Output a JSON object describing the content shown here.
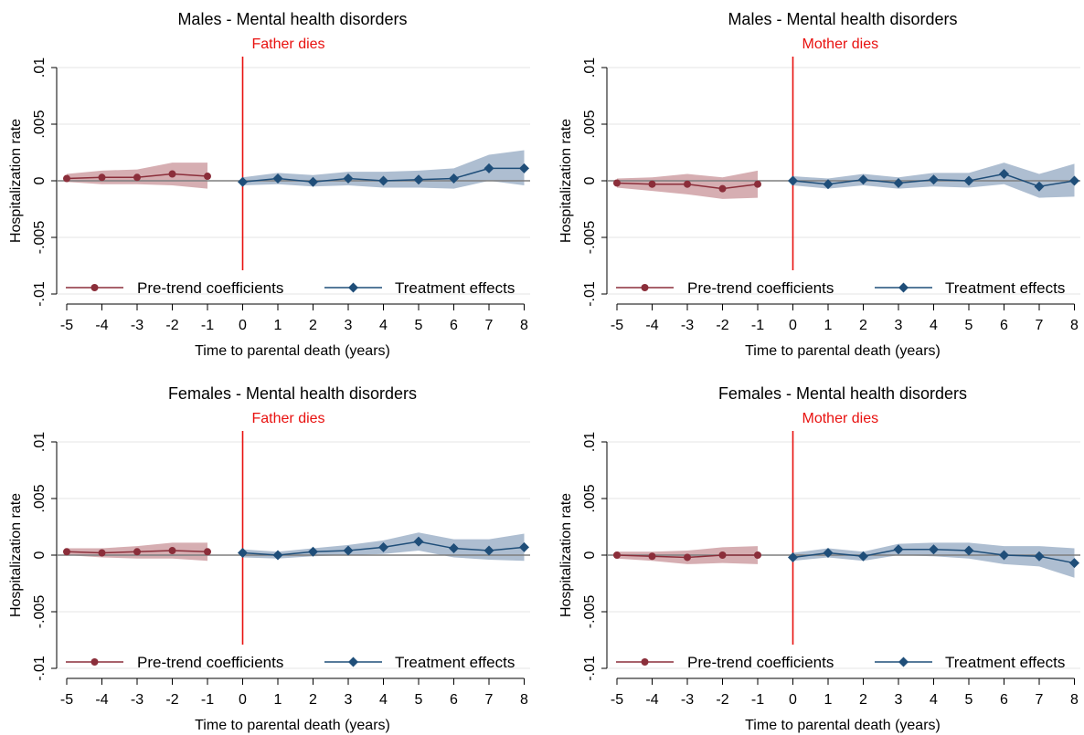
{
  "chart_data": [
    {
      "type": "line",
      "title": "Males - Mental health disorders",
      "event_label": "Father dies",
      "xlabel": "Time to parental death (years)",
      "ylabel": "Hospitalization rate",
      "xlim": [
        -5,
        8
      ],
      "ylim": [
        -0.01,
        0.01
      ],
      "x_ticks": [
        "-5",
        "-4",
        "-3",
        "-2",
        "-1",
        "0",
        "1",
        "2",
        "3",
        "4",
        "5",
        "6",
        "7",
        "8"
      ],
      "y_ticks": [
        ".01",
        ".005",
        "0",
        "-.005",
        "-.01"
      ],
      "grid": true,
      "legend_position": "bottom",
      "series": [
        {
          "name": "Pre-trend coefficients",
          "color": "#8b2e3a",
          "band_color": "#c48c92",
          "marker": "circle",
          "x": [
            -5,
            -4,
            -3,
            -2,
            -1
          ],
          "values": [
            0.0002,
            0.0003,
            0.0003,
            0.0006,
            0.0004
          ],
          "ci_low": [
            -0.0001,
            -0.0003,
            -0.0003,
            -0.0004,
            -0.0007
          ],
          "ci_high": [
            0.0006,
            0.0009,
            0.001,
            0.0016,
            0.0016
          ]
        },
        {
          "name": "Treatment effects",
          "color": "#1f4e79",
          "band_color": "#8ca3bd",
          "marker": "diamond",
          "x": [
            0,
            1,
            2,
            3,
            4,
            5,
            6,
            7,
            8
          ],
          "values": [
            -0.0001,
            0.0002,
            -0.0001,
            0.0002,
            0.0,
            0.0001,
            0.0002,
            0.0011,
            0.0011
          ],
          "ci_low": [
            -0.0004,
            -0.0003,
            -0.0005,
            -0.0004,
            -0.0006,
            -0.0006,
            -0.0007,
            0.0,
            -0.0004
          ],
          "ci_high": [
            0.0003,
            0.0007,
            0.0005,
            0.0008,
            0.0008,
            0.0009,
            0.0011,
            0.0023,
            0.0027
          ]
        }
      ]
    },
    {
      "type": "line",
      "title": "Males - Mental health disorders",
      "event_label": "Mother dies",
      "xlabel": "Time to parental death (years)",
      "ylabel": "Hospitalization rate",
      "xlim": [
        -5,
        8
      ],
      "ylim": [
        -0.01,
        0.01
      ],
      "x_ticks": [
        "-5",
        "-4",
        "-3",
        "-2",
        "-1",
        "0",
        "1",
        "2",
        "3",
        "4",
        "5",
        "6",
        "7",
        "8"
      ],
      "y_ticks": [
        ".01",
        ".005",
        "0",
        "-.005",
        "-.01"
      ],
      "grid": true,
      "legend_position": "bottom",
      "series": [
        {
          "name": "Pre-trend coefficients",
          "color": "#8b2e3a",
          "band_color": "#c48c92",
          "marker": "circle",
          "x": [
            -5,
            -4,
            -3,
            -2,
            -1
          ],
          "values": [
            -0.0002,
            -0.0003,
            -0.0003,
            -0.0007,
            -0.0003
          ],
          "ci_low": [
            -0.0006,
            -0.0009,
            -0.0012,
            -0.0016,
            -0.0015
          ],
          "ci_high": [
            0.0002,
            0.0003,
            0.0006,
            0.0003,
            0.0009
          ]
        },
        {
          "name": "Treatment effects",
          "color": "#1f4e79",
          "band_color": "#8ca3bd",
          "marker": "diamond",
          "x": [
            0,
            1,
            2,
            3,
            4,
            5,
            6,
            7,
            8
          ],
          "values": [
            0.0,
            -0.0003,
            0.0001,
            -0.0002,
            0.0001,
            0.0,
            0.0006,
            -0.0005,
            0.0
          ],
          "ci_low": [
            -0.0004,
            -0.0007,
            -0.0004,
            -0.0007,
            -0.0005,
            -0.0006,
            -0.0003,
            -0.0015,
            -0.0014
          ],
          "ci_high": [
            0.0004,
            0.0002,
            0.0006,
            0.0003,
            0.0007,
            0.0007,
            0.0016,
            0.0006,
            0.0015
          ]
        }
      ]
    },
    {
      "type": "line",
      "title": "Females - Mental health disorders",
      "event_label": "Father dies",
      "xlabel": "Time to parental death (years)",
      "ylabel": "Hospitalization rate",
      "xlim": [
        -5,
        8
      ],
      "ylim": [
        -0.01,
        0.01
      ],
      "x_ticks": [
        "-5",
        "-4",
        "-3",
        "-2",
        "-1",
        "0",
        "1",
        "2",
        "3",
        "4",
        "5",
        "6",
        "7",
        "8"
      ],
      "y_ticks": [
        ".01",
        ".005",
        "0",
        "-.005",
        "-.01"
      ],
      "grid": true,
      "legend_position": "bottom",
      "series": [
        {
          "name": "Pre-trend coefficients",
          "color": "#8b2e3a",
          "band_color": "#c48c92",
          "marker": "circle",
          "x": [
            -5,
            -4,
            -3,
            -2,
            -1
          ],
          "values": [
            0.0003,
            0.0002,
            0.0003,
            0.0004,
            0.0003
          ],
          "ci_low": [
            0.0,
            -0.0002,
            -0.0003,
            -0.0003,
            -0.0005
          ],
          "ci_high": [
            0.0006,
            0.0006,
            0.0008,
            0.0011,
            0.0011
          ]
        },
        {
          "name": "Treatment effects",
          "color": "#1f4e79",
          "band_color": "#8ca3bd",
          "marker": "diamond",
          "x": [
            0,
            1,
            2,
            3,
            4,
            5,
            6,
            7,
            8
          ],
          "values": [
            0.0002,
            0.0,
            0.0003,
            0.0004,
            0.0007,
            0.0012,
            0.0006,
            0.0004,
            0.0007
          ],
          "ci_low": [
            -0.0002,
            -0.0003,
            -0.0001,
            0.0,
            0.0001,
            0.0004,
            -0.0002,
            -0.0004,
            -0.0005
          ],
          "ci_high": [
            0.0005,
            0.0003,
            0.0006,
            0.0009,
            0.0013,
            0.002,
            0.0014,
            0.0014,
            0.0019
          ]
        }
      ]
    },
    {
      "type": "line",
      "title": "Females - Mental health disorders",
      "event_label": "Mother dies",
      "xlabel": "Time to parental death (years)",
      "ylabel": "Hospitalization rate",
      "xlim": [
        -5,
        8
      ],
      "ylim": [
        -0.01,
        0.01
      ],
      "x_ticks": [
        "-5",
        "-4",
        "-3",
        "-2",
        "-1",
        "0",
        "1",
        "2",
        "3",
        "4",
        "5",
        "6",
        "7",
        "8"
      ],
      "y_ticks": [
        ".01",
        ".005",
        "0",
        "-.005",
        "-.01"
      ],
      "grid": true,
      "legend_position": "bottom",
      "series": [
        {
          "name": "Pre-trend coefficients",
          "color": "#8b2e3a",
          "band_color": "#c48c92",
          "marker": "circle",
          "x": [
            -5,
            -4,
            -3,
            -2,
            -1
          ],
          "values": [
            0.0,
            -0.0001,
            -0.0002,
            0.0,
            0.0
          ],
          "ci_low": [
            -0.0003,
            -0.0005,
            -0.0008,
            -0.0007,
            -0.0008
          ],
          "ci_high": [
            0.0003,
            0.0003,
            0.0004,
            0.0007,
            0.0008
          ]
        },
        {
          "name": "Treatment effects",
          "color": "#1f4e79",
          "band_color": "#8ca3bd",
          "marker": "diamond",
          "x": [
            0,
            1,
            2,
            3,
            4,
            5,
            6,
            7,
            8
          ],
          "values": [
            -0.0002,
            0.0002,
            -0.0001,
            0.0005,
            0.0005,
            0.0004,
            0.0,
            -0.0001,
            -0.0007
          ],
          "ci_low": [
            -0.0005,
            -0.0002,
            -0.0005,
            0.0,
            -0.0001,
            -0.0003,
            -0.0008,
            -0.001,
            -0.002
          ],
          "ci_high": [
            0.0002,
            0.0006,
            0.0003,
            0.001,
            0.0011,
            0.0011,
            0.0008,
            0.0008,
            0.0006
          ]
        }
      ]
    }
  ]
}
